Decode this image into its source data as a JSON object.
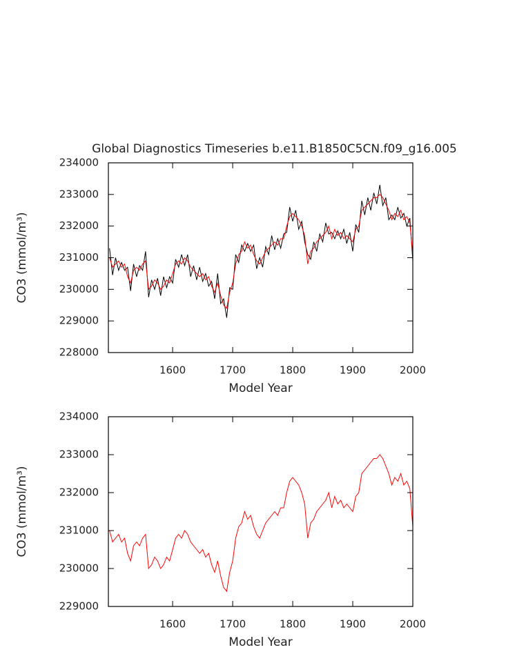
{
  "chart_data": [
    {
      "type": "line",
      "title": "Global Diagnostics Timeseries b.e11.B1850C5CN.f09_g16.005",
      "xlabel": "Model Year",
      "ylabel": "CO3 (mmol/m³)",
      "xlim": [
        1493,
        2000
      ],
      "xticks": [
        1600,
        1700,
        1800,
        1900,
        2000
      ],
      "ylim": [
        228000,
        234000
      ],
      "yticks": [
        228000,
        229000,
        230000,
        231000,
        232000,
        233000,
        234000
      ],
      "x": [
        1495,
        1500,
        1505,
        1510,
        1515,
        1520,
        1525,
        1530,
        1535,
        1540,
        1545,
        1550,
        1555,
        1560,
        1565,
        1570,
        1575,
        1580,
        1585,
        1590,
        1595,
        1600,
        1605,
        1610,
        1615,
        1620,
        1625,
        1630,
        1635,
        1640,
        1645,
        1650,
        1655,
        1660,
        1665,
        1670,
        1675,
        1680,
        1685,
        1690,
        1695,
        1700,
        1705,
        1710,
        1715,
        1720,
        1725,
        1730,
        1735,
        1740,
        1745,
        1750,
        1755,
        1760,
        1765,
        1770,
        1775,
        1780,
        1785,
        1790,
        1795,
        1800,
        1805,
        1810,
        1815,
        1820,
        1825,
        1830,
        1835,
        1840,
        1845,
        1850,
        1855,
        1860,
        1865,
        1870,
        1875,
        1880,
        1885,
        1890,
        1895,
        1900,
        1905,
        1910,
        1915,
        1920,
        1925,
        1930,
        1935,
        1940,
        1945,
        1950,
        1955,
        1960,
        1965,
        1970,
        1975,
        1980,
        1985,
        1990,
        1995,
        2000
      ],
      "series": [
        {
          "color": "#000000",
          "values": [
            231300,
            230450,
            231000,
            230600,
            230850,
            230600,
            230700,
            229950,
            230800,
            230400,
            230750,
            230600,
            231200,
            229750,
            230300,
            230000,
            230350,
            229800,
            230400,
            230050,
            230400,
            230200,
            230950,
            230700,
            231100,
            230750,
            231100,
            230400,
            230750,
            230300,
            230700,
            230250,
            230500,
            230100,
            230250,
            229700,
            230500,
            229550,
            229700,
            229100,
            230050,
            230000,
            231100,
            230850,
            231400,
            231200,
            231450,
            231200,
            231400,
            230650,
            231000,
            230700,
            231350,
            231100,
            231700,
            231250,
            231600,
            231300,
            231750,
            231800,
            232600,
            232150,
            232500,
            231900,
            232150,
            231500,
            231100,
            230950,
            231500,
            231200,
            231750,
            231500,
            232100,
            231750,
            231800,
            231600,
            231850,
            231600,
            231900,
            231450,
            231800,
            231200,
            232050,
            231800,
            232800,
            232350,
            232900,
            232500,
            233050,
            232700,
            233300,
            232650,
            232900,
            232200,
            232350,
            232200,
            232600,
            232250,
            232400,
            232000,
            232250,
            230900
          ]
        },
        {
          "color": "#ff0000",
          "values": [
            231000,
            230700,
            230800,
            230900,
            230700,
            230800,
            230400,
            230200,
            230600,
            230700,
            230600,
            230800,
            230900,
            230000,
            230100,
            230300,
            230200,
            230000,
            230100,
            230300,
            230200,
            230500,
            230800,
            230900,
            230800,
            231000,
            230900,
            230700,
            230600,
            230500,
            230400,
            230500,
            230300,
            230400,
            230100,
            229900,
            230200,
            229800,
            229500,
            229400,
            229900,
            230200,
            230800,
            231100,
            231200,
            231500,
            231300,
            231400,
            231100,
            230900,
            230800,
            231000,
            231200,
            231300,
            231400,
            231500,
            231400,
            231600,
            231600,
            232000,
            232300,
            232400,
            232300,
            232200,
            232000,
            231700,
            230800,
            231200,
            231300,
            231500,
            231600,
            231700,
            231800,
            232000,
            231600,
            231900,
            231700,
            231800,
            231600,
            231700,
            231600,
            231500,
            231900,
            232000,
            232500,
            232600,
            232700,
            232800,
            232900,
            232900,
            233000,
            232900,
            232700,
            232500,
            232200,
            232400,
            232300,
            232500,
            232200,
            232300,
            232100,
            231100
          ]
        }
      ]
    },
    {
      "type": "line",
      "xlabel": "Model Year",
      "ylabel": "CO3 (mmol/m³)",
      "xlim": [
        1493,
        2000
      ],
      "xticks": [
        1600,
        1700,
        1800,
        1900,
        2000
      ],
      "ylim": [
        229000,
        234000
      ],
      "yticks": [
        229000,
        230000,
        231000,
        232000,
        233000,
        234000
      ],
      "x": [
        1495,
        1500,
        1505,
        1510,
        1515,
        1520,
        1525,
        1530,
        1535,
        1540,
        1545,
        1550,
        1555,
        1560,
        1565,
        1570,
        1575,
        1580,
        1585,
        1590,
        1595,
        1600,
        1605,
        1610,
        1615,
        1620,
        1625,
        1630,
        1635,
        1640,
        1645,
        1650,
        1655,
        1660,
        1665,
        1670,
        1675,
        1680,
        1685,
        1690,
        1695,
        1700,
        1705,
        1710,
        1715,
        1720,
        1725,
        1730,
        1735,
        1740,
        1745,
        1750,
        1755,
        1760,
        1765,
        1770,
        1775,
        1780,
        1785,
        1790,
        1795,
        1800,
        1805,
        1810,
        1815,
        1820,
        1825,
        1830,
        1835,
        1840,
        1845,
        1850,
        1855,
        1860,
        1865,
        1870,
        1875,
        1880,
        1885,
        1890,
        1895,
        1900,
        1905,
        1910,
        1915,
        1920,
        1925,
        1930,
        1935,
        1940,
        1945,
        1950,
        1955,
        1960,
        1965,
        1970,
        1975,
        1980,
        1985,
        1990,
        1995,
        2000
      ],
      "series": [
        {
          "color": "#ff0000",
          "values": [
            231000,
            230700,
            230800,
            230900,
            230700,
            230800,
            230400,
            230200,
            230600,
            230700,
            230600,
            230800,
            230900,
            230000,
            230100,
            230300,
            230200,
            230000,
            230100,
            230300,
            230200,
            230500,
            230800,
            230900,
            230800,
            231000,
            230900,
            230700,
            230600,
            230500,
            230400,
            230500,
            230300,
            230400,
            230100,
            229900,
            230200,
            229800,
            229500,
            229400,
            229900,
            230200,
            230800,
            231100,
            231200,
            231500,
            231300,
            231400,
            231100,
            230900,
            230800,
            231000,
            231200,
            231300,
            231400,
            231500,
            231400,
            231600,
            231600,
            232000,
            232300,
            232400,
            232300,
            232200,
            232000,
            231700,
            230800,
            231200,
            231300,
            231500,
            231600,
            231700,
            231800,
            232000,
            231600,
            231900,
            231700,
            231800,
            231600,
            231700,
            231600,
            231500,
            231900,
            232000,
            232500,
            232600,
            232700,
            232800,
            232900,
            232900,
            233000,
            232900,
            232700,
            232500,
            232200,
            232400,
            232300,
            232500,
            232200,
            232300,
            232100,
            231100
          ]
        }
      ]
    }
  ]
}
